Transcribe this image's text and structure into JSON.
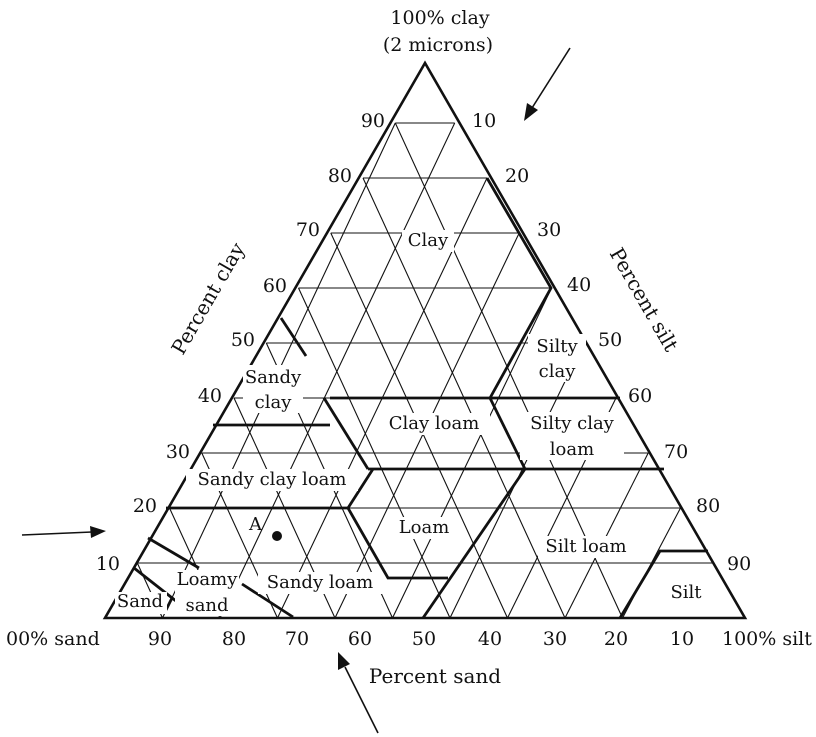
{
  "title_top": {
    "line1": "100% clay",
    "line2": "(2 microns)"
  },
  "corners": {
    "left": "00% sand",
    "right": "100% silt"
  },
  "axes": {
    "clay": "Percent clay",
    "silt": "Percent silt",
    "sand": "Percent sand"
  },
  "ticks": {
    "clay": [
      "10",
      "20",
      "30",
      "40",
      "50",
      "60",
      "70",
      "80",
      "90"
    ],
    "silt": [
      "10",
      "20",
      "30",
      "40",
      "50",
      "60",
      "70",
      "80",
      "90"
    ],
    "sand": [
      "90",
      "80",
      "70",
      "60",
      "50",
      "40",
      "30",
      "20",
      "10"
    ]
  },
  "zones": {
    "clay": "Clay",
    "silty_clay_1": "Silty",
    "silty_clay_2": "clay",
    "sandy_clay_1": "Sandy",
    "sandy_clay_2": "clay",
    "clay_loam": "Clay loam",
    "silty_clay_loam_1": "Silty clay",
    "silty_clay_loam_2": "loam",
    "sandy_clay_loam": "Sandy clay loam",
    "loam": "Loam",
    "silt_loam": "Silt loam",
    "loamy_sand_1": "Loamy",
    "loamy_sand_2": "sand",
    "sandy_loam": "Sandy loam",
    "sand": "Sand",
    "silt": "Silt"
  },
  "point": {
    "label": "A"
  },
  "colors": {
    "ink": "#111111",
    "paper": "#ffffff"
  }
}
